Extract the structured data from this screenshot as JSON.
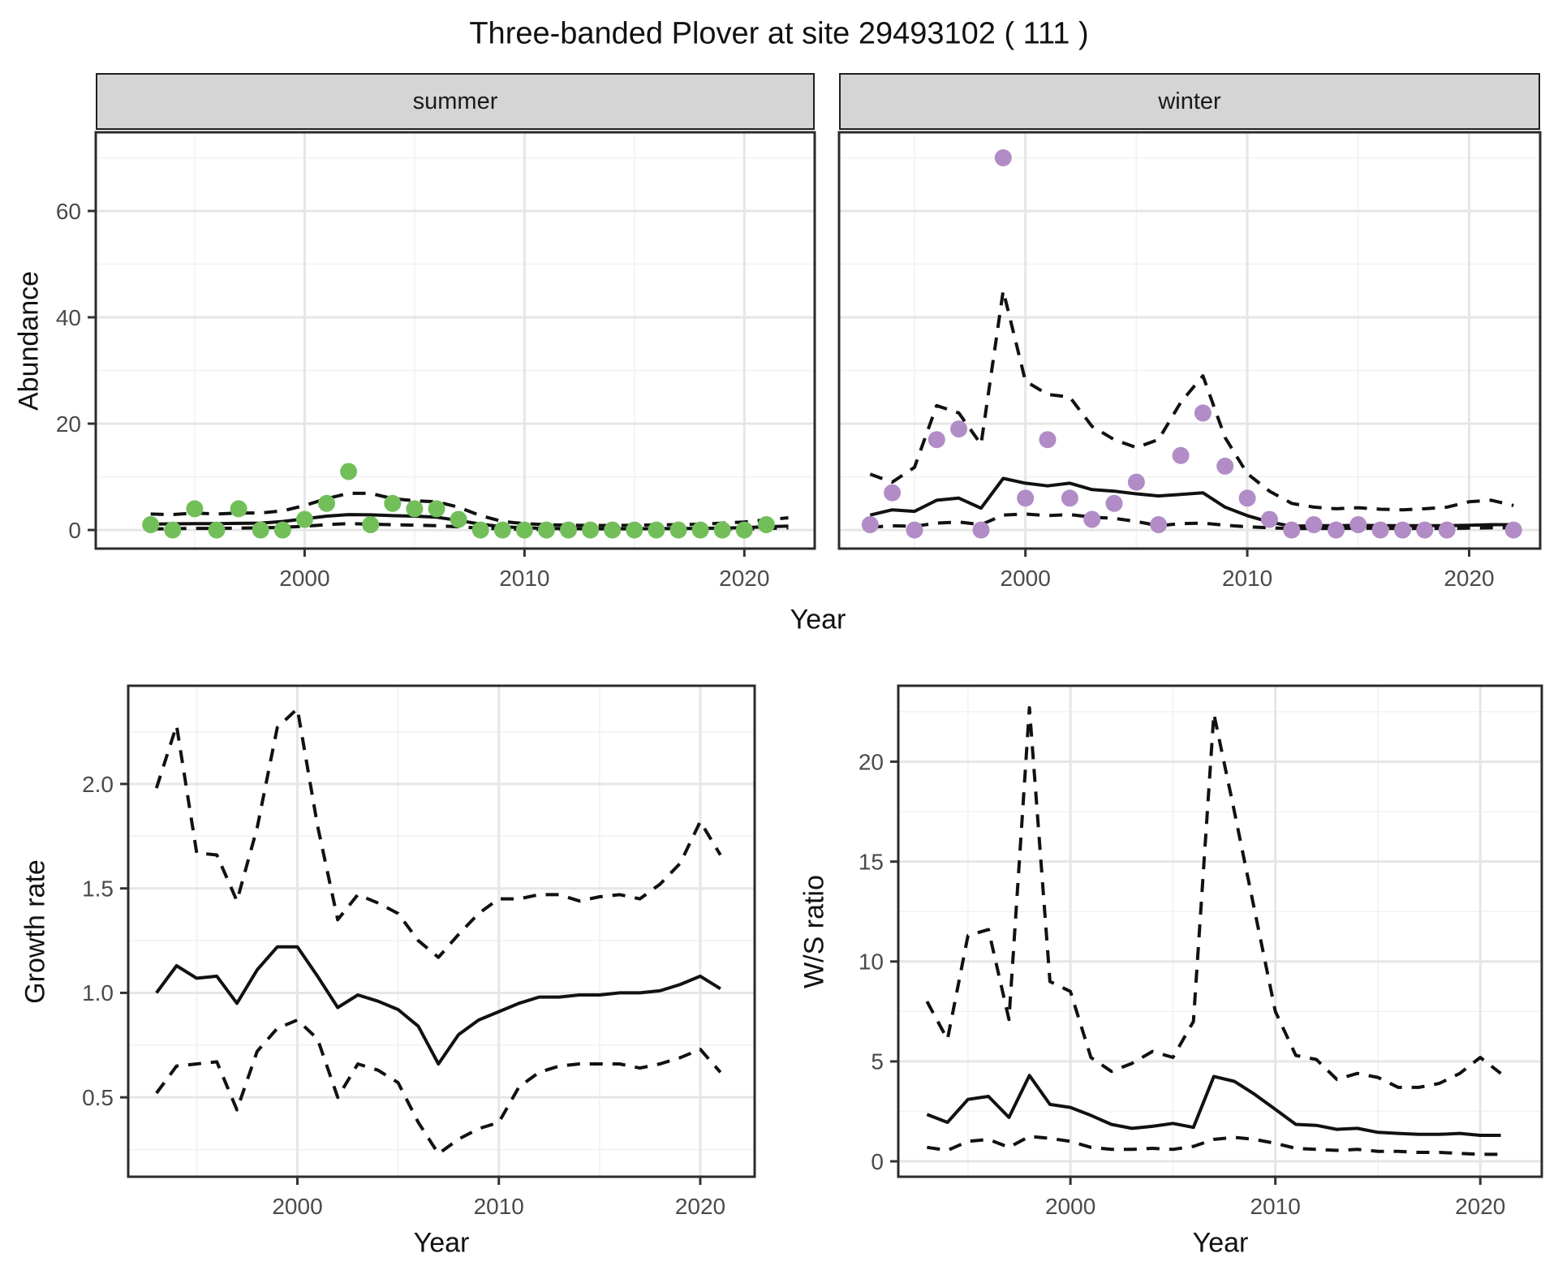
{
  "title": "Three-banded Plover at site 29493102 ( 111 )",
  "colors": {
    "summer_point": "#72BF5A",
    "winter_point": "#B18CC6",
    "line": "#111111",
    "grid_major": "#E6E6E6",
    "grid_minor": "#F2F2F2",
    "panel_border": "#2B2B2B",
    "tick_text": "#4A4A4A",
    "strip_bg": "#D5D5D5"
  },
  "chart_data": [
    {
      "type": "scatter",
      "facet": "summer",
      "xlabel": "Year",
      "ylabel": "Abundance",
      "xlim": [
        1990.5,
        2023.2
      ],
      "ylim": [
        -3.5,
        74.8
      ],
      "xticks": [
        {
          "v": 2000,
          "t": "2000"
        },
        {
          "v": 2010,
          "t": "2010"
        },
        {
          "v": 2020,
          "t": "2020"
        }
      ],
      "xminor": [
        1995,
        2005,
        2015
      ],
      "yticks": [
        {
          "v": 0,
          "t": "0"
        },
        {
          "v": 20,
          "t": "20"
        },
        {
          "v": 40,
          "t": "40"
        },
        {
          "v": 60,
          "t": "60"
        }
      ],
      "yminor": [
        10,
        30,
        50,
        70
      ],
      "show_ylabels": true,
      "points": {
        "color": "#72BF5A",
        "x": [
          1993,
          1994,
          1995,
          1996,
          1997,
          1998,
          1999,
          2000,
          2001,
          2002,
          2003,
          2004,
          2005,
          2006,
          2007,
          2008,
          2009,
          2010,
          2011,
          2012,
          2013,
          2014,
          2015,
          2016,
          2017,
          2018,
          2019,
          2020,
          2021
        ],
        "y": [
          1,
          0,
          4,
          0,
          4,
          0,
          0,
          2,
          5,
          11,
          1,
          5,
          4,
          4,
          2,
          0,
          0,
          0,
          0,
          0,
          0,
          0,
          0,
          0,
          0,
          0,
          0,
          0,
          1
        ]
      },
      "line_x": [
        1993,
        1994,
        1995,
        1996,
        1997,
        1998,
        1999,
        2000,
        2001,
        2002,
        2003,
        2004,
        2005,
        2006,
        2007,
        2008,
        2009,
        2010,
        2011,
        2012,
        2013,
        2014,
        2015,
        2016,
        2017,
        2018,
        2019,
        2020,
        2021,
        2022
      ],
      "lines": [
        {
          "name": "upper-ci",
          "style": "dashed",
          "y": [
            3.0,
            2.9,
            3.2,
            3.0,
            3.2,
            3.2,
            3.6,
            4.6,
            5.9,
            6.9,
            6.9,
            5.9,
            5.5,
            5.3,
            4.3,
            2.7,
            1.6,
            1.2,
            1.0,
            0.9,
            0.85,
            0.85,
            0.9,
            0.95,
            1.0,
            1.1,
            1.3,
            1.5,
            1.9,
            2.3
          ]
        },
        {
          "name": "fit",
          "style": "solid",
          "y": [
            1.1,
            1.15,
            1.2,
            1.2,
            1.25,
            1.3,
            1.6,
            2.1,
            2.6,
            2.9,
            2.85,
            2.7,
            2.6,
            2.4,
            1.8,
            1.1,
            0.6,
            0.4,
            0.3,
            0.25,
            0.22,
            0.22,
            0.22,
            0.25,
            0.28,
            0.3,
            0.35,
            0.45,
            0.6,
            0.75
          ]
        },
        {
          "name": "lower-ci",
          "style": "dashed",
          "y": [
            0.2,
            0.25,
            0.3,
            0.3,
            0.35,
            0.4,
            0.5,
            0.7,
            1.0,
            1.2,
            1.1,
            1.0,
            0.9,
            0.8,
            0.6,
            0.35,
            0.2,
            0.1,
            0.08,
            0.06,
            0.05,
            0.05,
            0.05,
            0.06,
            0.08,
            0.1,
            0.12,
            0.18,
            0.28,
            0.4
          ]
        }
      ]
    },
    {
      "type": "scatter",
      "facet": "winter",
      "xlabel": "Year",
      "ylabel": "Abundance",
      "xlim": [
        1991.6,
        2023.2
      ],
      "ylim": [
        -3.5,
        74.8
      ],
      "xticks": [
        {
          "v": 2000,
          "t": "2000"
        },
        {
          "v": 2010,
          "t": "2010"
        },
        {
          "v": 2020,
          "t": "2020"
        }
      ],
      "xminor": [
        1995,
        2005,
        2015
      ],
      "yticks": [
        {
          "v": 0,
          "t": "0"
        },
        {
          "v": 20,
          "t": "20"
        },
        {
          "v": 40,
          "t": "40"
        },
        {
          "v": 60,
          "t": "60"
        }
      ],
      "yminor": [
        10,
        30,
        50,
        70
      ],
      "show_ylabels": false,
      "points": {
        "color": "#B18CC6",
        "x": [
          1993,
          1994,
          1995,
          1996,
          1997,
          1998,
          1999,
          2000,
          2001,
          2002,
          2003,
          2004,
          2005,
          2006,
          2007,
          2008,
          2009,
          2010,
          2011,
          2012,
          2013,
          2014,
          2015,
          2016,
          2017,
          2018,
          2019,
          2022
        ],
        "y": [
          1,
          7,
          0,
          17,
          19,
          0,
          70,
          6,
          17,
          6,
          2,
          5,
          9,
          1,
          14,
          22,
          12,
          6,
          2,
          0,
          1,
          0,
          1,
          0,
          0,
          0,
          0,
          0
        ]
      },
      "line_x": [
        1993,
        1994,
        1995,
        1996,
        1997,
        1998,
        1999,
        2000,
        2001,
        2002,
        2003,
        2004,
        2005,
        2006,
        2007,
        2008,
        2009,
        2010,
        2011,
        2012,
        2013,
        2014,
        2015,
        2016,
        2017,
        2018,
        2019,
        2020,
        2021,
        2022
      ],
      "lines": [
        {
          "name": "upper-ci",
          "style": "dashed",
          "y": [
            10.5,
            9.0,
            11.8,
            23.4,
            22.0,
            16.1,
            45.0,
            28.0,
            25.5,
            25.0,
            19.5,
            17.0,
            15.5,
            17.0,
            24.0,
            29.0,
            17.4,
            10.6,
            7.3,
            5.0,
            4.3,
            4.0,
            4.2,
            3.9,
            3.8,
            4.0,
            4.3,
            5.3,
            5.6,
            4.6
          ]
        },
        {
          "name": "fit",
          "style": "solid",
          "y": [
            2.8,
            3.8,
            3.5,
            5.6,
            6.0,
            4.1,
            9.7,
            8.8,
            8.3,
            8.8,
            7.6,
            7.3,
            6.8,
            6.4,
            6.7,
            7.0,
            4.3,
            2.7,
            1.5,
            0.7,
            0.8,
            0.8,
            0.9,
            0.8,
            0.8,
            0.8,
            0.8,
            0.9,
            1.0,
            1.0
          ]
        },
        {
          "name": "lower-ci",
          "style": "dashed",
          "y": [
            0.5,
            0.8,
            0.7,
            1.3,
            1.5,
            1.0,
            2.8,
            3.0,
            2.7,
            2.9,
            2.4,
            2.2,
            1.6,
            0.8,
            1.2,
            1.3,
            0.9,
            0.6,
            0.4,
            0.25,
            0.3,
            0.3,
            0.35,
            0.3,
            0.3,
            0.3,
            0.3,
            0.35,
            0.4,
            0.4
          ]
        }
      ]
    },
    {
      "type": "line",
      "facet": "",
      "xlabel": "Year",
      "ylabel": "Growth rate",
      "xlim": [
        1991.6,
        2022.7
      ],
      "ylim": [
        0.12,
        2.47
      ],
      "xticks": [
        {
          "v": 2000,
          "t": "2000"
        },
        {
          "v": 2010,
          "t": "2010"
        },
        {
          "v": 2020,
          "t": "2020"
        }
      ],
      "xminor": [
        1995,
        2005,
        2015
      ],
      "yticks": [
        {
          "v": 0.5,
          "t": "0.5"
        },
        {
          "v": 1.0,
          "t": "1.0"
        },
        {
          "v": 1.5,
          "t": "1.5"
        },
        {
          "v": 2.0,
          "t": "2.0"
        }
      ],
      "yminor": [
        0.25,
        0.75,
        1.25,
        1.75,
        2.25
      ],
      "show_ylabels": true,
      "points": null,
      "line_x": [
        1993,
        1994,
        1995,
        1996,
        1997,
        1998,
        1999,
        2000,
        2001,
        2002,
        2003,
        2004,
        2005,
        2006,
        2007,
        2008,
        2009,
        2010,
        2011,
        2012,
        2013,
        2014,
        2015,
        2016,
        2017,
        2018,
        2019,
        2020,
        2021
      ],
      "lines": [
        {
          "name": "upper-ci",
          "style": "dashed",
          "y": [
            1.98,
            2.28,
            1.67,
            1.66,
            1.44,
            1.79,
            2.27,
            2.36,
            1.8,
            1.35,
            1.47,
            1.43,
            1.38,
            1.25,
            1.17,
            1.28,
            1.38,
            1.45,
            1.45,
            1.47,
            1.47,
            1.44,
            1.46,
            1.47,
            1.45,
            1.52,
            1.62,
            1.82,
            1.66
          ]
        },
        {
          "name": "fit",
          "style": "solid",
          "y": [
            1.0,
            1.13,
            1.07,
            1.08,
            0.95,
            1.11,
            1.22,
            1.22,
            1.08,
            0.93,
            0.99,
            0.96,
            0.92,
            0.84,
            0.66,
            0.8,
            0.87,
            0.91,
            0.95,
            0.98,
            0.98,
            0.99,
            0.99,
            1.0,
            1.0,
            1.01,
            1.04,
            1.08,
            1.02
          ]
        },
        {
          "name": "lower-ci",
          "style": "dashed",
          "y": [
            0.52,
            0.65,
            0.66,
            0.67,
            0.44,
            0.72,
            0.83,
            0.87,
            0.78,
            0.5,
            0.66,
            0.63,
            0.57,
            0.38,
            0.23,
            0.3,
            0.35,
            0.38,
            0.55,
            0.62,
            0.65,
            0.66,
            0.66,
            0.66,
            0.64,
            0.66,
            0.69,
            0.73,
            0.62
          ]
        }
      ]
    },
    {
      "type": "line",
      "facet": "",
      "xlabel": "Year",
      "ylabel": "W/S ratio",
      "xlim": [
        1991.6,
        2023.0
      ],
      "ylim": [
        -0.77,
        23.8
      ],
      "xticks": [
        {
          "v": 2000,
          "t": "2000"
        },
        {
          "v": 2010,
          "t": "2010"
        },
        {
          "v": 2020,
          "t": "2020"
        }
      ],
      "xminor": [
        1995,
        2005,
        2015
      ],
      "yticks": [
        {
          "v": 0,
          "t": "0"
        },
        {
          "v": 5,
          "t": "5"
        },
        {
          "v": 10,
          "t": "10"
        },
        {
          "v": 15,
          "t": "15"
        },
        {
          "v": 20,
          "t": "20"
        }
      ],
      "yminor": [
        2.5,
        7.5,
        12.5,
        17.5,
        22.5
      ],
      "show_ylabels": true,
      "points": null,
      "line_x": [
        1993,
        1994,
        1995,
        1996,
        1997,
        1998,
        1999,
        2000,
        2001,
        2002,
        2003,
        2004,
        2005,
        2006,
        2007,
        2008,
        2009,
        2010,
        2011,
        2012,
        2013,
        2014,
        2015,
        2016,
        2017,
        2018,
        2019,
        2020,
        2021
      ],
      "lines": [
        {
          "name": "upper-ci",
          "style": "dashed",
          "y": [
            8.0,
            6.1,
            11.3,
            11.6,
            7.1,
            22.7,
            9.0,
            8.5,
            5.2,
            4.5,
            4.9,
            5.5,
            5.2,
            7.0,
            22.4,
            17.5,
            12.5,
            7.5,
            5.3,
            5.1,
            4.1,
            4.4,
            4.2,
            3.7,
            3.7,
            3.9,
            4.4,
            5.2,
            4.4
          ]
        },
        {
          "name": "fit",
          "style": "solid",
          "y": [
            2.35,
            1.95,
            3.1,
            3.25,
            2.2,
            4.3,
            2.85,
            2.7,
            2.3,
            1.85,
            1.65,
            1.75,
            1.9,
            1.7,
            4.25,
            4.0,
            3.35,
            2.6,
            1.85,
            1.8,
            1.6,
            1.65,
            1.45,
            1.4,
            1.35,
            1.35,
            1.4,
            1.3,
            1.3
          ]
        },
        {
          "name": "lower-ci",
          "style": "dashed",
          "y": [
            0.7,
            0.55,
            1.0,
            1.1,
            0.7,
            1.25,
            1.15,
            1.0,
            0.7,
            0.6,
            0.6,
            0.65,
            0.6,
            0.75,
            1.1,
            1.2,
            1.1,
            0.9,
            0.65,
            0.6,
            0.55,
            0.6,
            0.5,
            0.5,
            0.45,
            0.45,
            0.4,
            0.35,
            0.35
          ]
        }
      ]
    }
  ]
}
